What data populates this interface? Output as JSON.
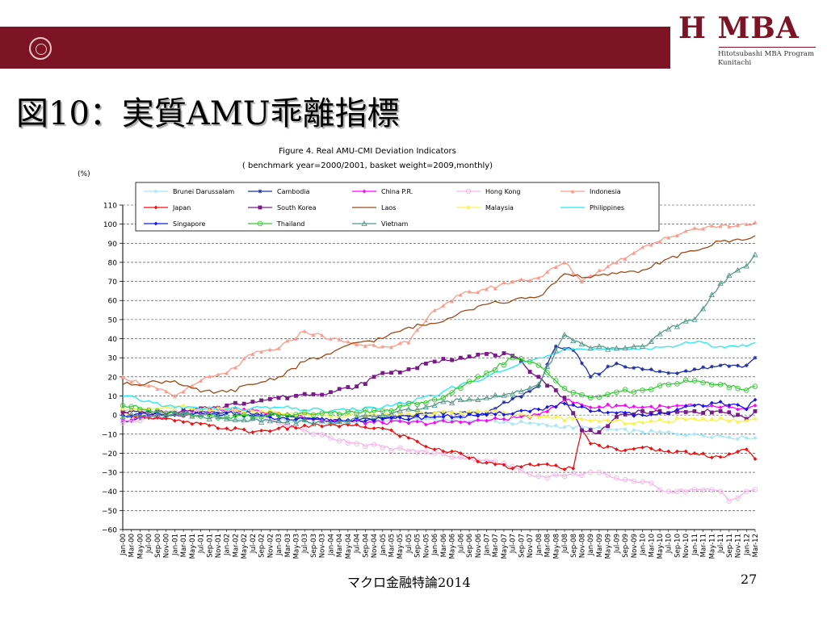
{
  "slide": {
    "title": "図10：実質AMU乖離指標",
    "footer": "マクロ金融特論2014",
    "page_number": "27"
  },
  "logo": {
    "text": "H MBA",
    "line1": "Hitotsubashi MBA Program",
    "line2": "Kunitachi"
  },
  "colors": {
    "banner": "#7d1426",
    "Brunei Darussalam": "#a9e6f6",
    "Cambodia": "#1f2f9f",
    "China P.R.": "#ff00ff",
    "Hong Kong": "#f6b6e6",
    "Indonesia": "#ff9a8a",
    "Japan": "#ee1111",
    "South Korea": "#7a1a8a",
    "Laos": "#9a4a1a",
    "Malaysia": "#f6f24a",
    "Philippines": "#22eaf6",
    "Singapore": "#1616e6",
    "Thailand": "#33cc33",
    "Vietnam": "#559988"
  },
  "chart_data": {
    "type": "line",
    "title": "Figure 4. Real AMU-CMI Deviation Indicators",
    "subtitle": "( benchmark year=2000/2001, basket weight=2009,monthly)",
    "ylabel": "(%)",
    "xlabel": "",
    "ylim": [
      -60,
      110
    ],
    "yticks": [
      110,
      100,
      90,
      80,
      70,
      60,
      50,
      40,
      30,
      20,
      10,
      0,
      -10,
      -20,
      -30,
      -40,
      -50,
      -60
    ],
    "grid": "horizontal dashed",
    "legend_position": "top, inside",
    "x_start": "Jan-00",
    "x_end": "Mar-12",
    "x_tick_labels": [
      "Jan-00",
      "Mar-00",
      "May-00",
      "Jul-00",
      "Sep-00",
      "Nov-00",
      "Jan-01",
      "Mar-01",
      "May-01",
      "Jul-01",
      "Sep-01",
      "Nov-01",
      "Jan-02",
      "Mar-02",
      "May-02",
      "Jul-02",
      "Sep-02",
      "Nov-02",
      "Jan-03",
      "Mar-03",
      "May-03",
      "Jul-03",
      "Sep-03",
      "Nov-03",
      "Jan-04",
      "Mar-04",
      "May-04",
      "Jul-04",
      "Sep-04",
      "Nov-04",
      "Jan-05",
      "Mar-05",
      "May-05",
      "Jul-05",
      "Sep-05",
      "Nov-05",
      "Jan-06",
      "Mar-06",
      "May-06",
      "Jul-06",
      "Sep-06",
      "Nov-06",
      "Jan-07",
      "Mar-07",
      "May-07",
      "Jul-07",
      "Sep-07",
      "Nov-07",
      "Jan-08",
      "Mar-08",
      "May-08",
      "Jul-08",
      "Sep-08",
      "Nov-08",
      "Jan-09",
      "Mar-09",
      "May-09",
      "Jul-09",
      "Sep-09",
      "Nov-09",
      "Jan-10",
      "Mar-10",
      "May-10",
      "Jul-10",
      "Sep-10",
      "Nov-10",
      "Jan-11",
      "Mar-11",
      "May-11",
      "Jul-11",
      "Sep-11",
      "Nov-11",
      "Jan-12",
      "Mar-12"
    ],
    "series": [
      {
        "name": "Brunei Darussalam",
        "marker": "star",
        "dates": [
          "Jan-00",
          "Jan-01",
          "Jan-02",
          "Jan-03",
          "Jan-04",
          "Jan-05",
          "Jan-06",
          "Jan-07",
          "Jan-08",
          "Jan-09",
          "Jan-10",
          "Jan-11",
          "Jan-12",
          "Mar-12"
        ],
        "values": [
          2,
          1,
          -1,
          -3,
          -4,
          -3,
          -2,
          -3,
          -5,
          -7,
          -9,
          -10,
          -12,
          -12
        ]
      },
      {
        "name": "Cambodia",
        "marker": "asterisk",
        "dates": [
          "Jan-00",
          "Jan-01",
          "Jan-02",
          "Jan-03",
          "Jan-04",
          "Jan-05",
          "Jan-06",
          "Jan-07",
          "Jan-08",
          "May-08",
          "Sep-08",
          "Jan-09",
          "Jul-09",
          "Jan-10",
          "Jul-10",
          "Jan-11",
          "Jul-11",
          "Jan-12",
          "Mar-12"
        ],
        "values": [
          -3,
          1,
          2,
          0,
          -3,
          -2,
          1,
          1,
          15,
          36,
          34,
          20,
          27,
          24,
          22,
          24,
          26,
          26,
          30
        ]
      },
      {
        "name": "China P.R.",
        "marker": "diamond",
        "dates": [
          "Jan-00",
          "Jan-01",
          "Jan-02",
          "Jan-03",
          "Jan-04",
          "Jan-05",
          "Jan-06",
          "Jan-07",
          "Jan-08",
          "Jul-08",
          "Jan-09",
          "Jul-09",
          "Jan-10",
          "Jul-10",
          "Jan-11",
          "Jul-11",
          "Jan-12",
          "Mar-12"
        ],
        "values": [
          -3,
          0,
          3,
          1,
          -3,
          -4,
          -4,
          -3,
          0,
          8,
          4,
          5,
          4,
          4,
          5,
          4,
          3,
          5
        ]
      },
      {
        "name": "Hong Kong",
        "marker": "circle-open",
        "dates": [
          "Jan-00",
          "Jan-01",
          "Jan-02",
          "Jan-03",
          "Jan-04",
          "Jan-05",
          "Jan-06",
          "Jan-07",
          "Jul-07",
          "Jan-08",
          "Jul-08",
          "Jan-09",
          "Jul-09",
          "Jan-10",
          "Jul-10",
          "Jan-11",
          "Jul-11",
          "Sep-11",
          "Jan-12",
          "Mar-12"
        ],
        "values": [
          -4,
          2,
          3,
          -4,
          -12,
          -17,
          -20,
          -24,
          -27,
          -32,
          -32,
          -30,
          -33,
          -35,
          -40,
          -39,
          -40,
          -45,
          -40,
          -39
        ]
      },
      {
        "name": "Indonesia",
        "marker": "triangle",
        "dates": [
          "Jan-00",
          "Jan-01",
          "Jul-01",
          "Jan-02",
          "Jul-02",
          "Jan-03",
          "Jul-03",
          "Jan-04",
          "Jul-04",
          "Jan-05",
          "Jul-05",
          "Jan-06",
          "Jul-06",
          "Jan-07",
          "Jul-07",
          "Jan-08",
          "Jul-08",
          "Nov-08",
          "Jan-09",
          "Jul-09",
          "Jan-10",
          "Jul-10",
          "Jan-11",
          "Jul-11",
          "Jan-12",
          "Mar-12"
        ],
        "values": [
          20,
          10,
          18,
          22,
          32,
          35,
          44,
          40,
          37,
          36,
          38,
          55,
          63,
          66,
          70,
          72,
          80,
          70,
          73,
          80,
          88,
          93,
          98,
          99,
          100,
          101
        ]
      },
      {
        "name": "Japan",
        "marker": "diamond",
        "dates": [
          "Jan-00",
          "Jan-01",
          "Jan-02",
          "Jul-02",
          "Jan-03",
          "Jan-04",
          "Jan-05",
          "Jul-05",
          "Jan-06",
          "Jul-06",
          "Jan-07",
          "Jul-07",
          "Jan-08",
          "Sep-08",
          "Nov-08",
          "Jan-09",
          "Jul-09",
          "Jan-10",
          "Jul-10",
          "Jan-11",
          "Jul-11",
          "Jan-12",
          "Mar-12"
        ],
        "values": [
          1,
          -3,
          -7,
          -9,
          -7,
          -5,
          -7,
          -12,
          -18,
          -20,
          -25,
          -28,
          -26,
          -28,
          -8,
          -15,
          -18,
          -17,
          -19,
          -20,
          -22,
          -18,
          -23
        ]
      },
      {
        "name": "South Korea",
        "marker": "square",
        "dates": [
          "Jan-00",
          "Jan-01",
          "Jan-02",
          "Jul-02",
          "Jan-03",
          "Jul-03",
          "Jan-04",
          "Jul-04",
          "Jan-05",
          "Jul-05",
          "Jan-06",
          "Jul-06",
          "Jan-07",
          "Jul-07",
          "Jan-08",
          "Jul-08",
          "Nov-08",
          "Mar-09",
          "Jul-09",
          "Jan-10",
          "Jul-10",
          "Jan-11",
          "Jul-11",
          "Jan-12",
          "Mar-12"
        ],
        "values": [
          2,
          1,
          5,
          7,
          9,
          11,
          12,
          15,
          22,
          24,
          28,
          30,
          32,
          31,
          20,
          9,
          -8,
          -9,
          -1,
          2,
          1,
          2,
          2,
          -2,
          2
        ]
      },
      {
        "name": "Laos",
        "marker": "line",
        "dates": [
          "Jan-00",
          "Jan-01",
          "Jul-01",
          "Jan-02",
          "Jul-02",
          "Jan-03",
          "Jul-03",
          "Jan-04",
          "Jul-04",
          "Jan-05",
          "Jul-05",
          "Jan-06",
          "Jul-06",
          "Jan-07",
          "Jul-07",
          "Jan-08",
          "Jul-08",
          "Jan-09",
          "Jul-09",
          "Jan-10",
          "Jul-10",
          "Jan-11",
          "Jul-11",
          "Jan-12",
          "Mar-12"
        ],
        "values": [
          16,
          18,
          12,
          12,
          16,
          20,
          28,
          32,
          38,
          40,
          46,
          48,
          54,
          58,
          60,
          62,
          74,
          72,
          74,
          76,
          82,
          86,
          91,
          92,
          94
        ]
      },
      {
        "name": "Malaysia",
        "marker": "star",
        "dates": [
          "Jan-00",
          "Jan-01",
          "Jan-02",
          "Jan-03",
          "Jan-04",
          "Jan-05",
          "Jan-06",
          "Jan-07",
          "Jan-08",
          "Jan-09",
          "Jan-10",
          "Jan-11",
          "Jan-12",
          "Mar-12"
        ],
        "values": [
          3,
          4,
          3,
          1,
          -1,
          0,
          1,
          2,
          -1,
          -3,
          -4,
          -2,
          -3,
          -2
        ]
      },
      {
        "name": "Philippines",
        "marker": "line",
        "dates": [
          "Jan-00",
          "Jan-01",
          "Jan-02",
          "Jan-03",
          "Jan-04",
          "Jan-05",
          "Jan-06",
          "Jul-06",
          "Jan-07",
          "Jul-07",
          "Jan-08",
          "Jul-08",
          "Jan-09",
          "Jul-09",
          "Jan-10",
          "Jul-10",
          "Jan-11",
          "Jul-11",
          "Jan-12",
          "Mar-12"
        ],
        "values": [
          10,
          4,
          3,
          4,
          2,
          4,
          10,
          16,
          20,
          25,
          30,
          35,
          34,
          34,
          35,
          36,
          38,
          36,
          36,
          38
        ]
      },
      {
        "name": "Singapore",
        "marker": "diamond",
        "dates": [
          "Jan-00",
          "Jan-01",
          "Jan-02",
          "Jan-03",
          "Jan-04",
          "Jan-05",
          "Jan-06",
          "Jan-07",
          "Jan-08",
          "Jul-08",
          "Jan-09",
          "Jul-09",
          "Jan-10",
          "Jul-10",
          "Jan-11",
          "Jul-11",
          "Jan-12",
          "Mar-12"
        ],
        "values": [
          0,
          0,
          1,
          -2,
          -3,
          -2,
          -1,
          0,
          3,
          6,
          2,
          1,
          0,
          1,
          5,
          7,
          3,
          8
        ]
      },
      {
        "name": "Thailand",
        "marker": "circle-open",
        "dates": [
          "Jan-00",
          "Jan-01",
          "Jan-02",
          "Jan-03",
          "Jan-04",
          "Jan-05",
          "Jan-06",
          "Jul-06",
          "Jan-07",
          "Jul-07",
          "Jan-08",
          "Jul-08",
          "Jan-09",
          "Jul-09",
          "Jan-10",
          "Jul-10",
          "Jan-11",
          "Jul-11",
          "Jan-12",
          "Mar-12"
        ],
        "values": [
          5,
          1,
          -1,
          0,
          1,
          2,
          8,
          14,
          22,
          30,
          26,
          14,
          9,
          12,
          13,
          16,
          18,
          16,
          13,
          15
        ]
      },
      {
        "name": "Vietnam",
        "marker": "triangle-open",
        "dates": [
          "Jan-00",
          "Jan-01",
          "Jan-02",
          "Jan-03",
          "Jan-04",
          "Jan-05",
          "Jan-06",
          "Jul-06",
          "Jan-07",
          "Jul-07",
          "Jan-08",
          "Jul-08",
          "Jan-09",
          "Jul-09",
          "Jan-10",
          "Jul-10",
          "Jan-11",
          "Jul-11",
          "Jan-12",
          "Mar-12"
        ],
        "values": [
          -1,
          1,
          -2,
          -3,
          -4,
          0,
          5,
          8,
          9,
          11,
          16,
          42,
          35,
          35,
          36,
          45,
          50,
          69,
          78,
          84
        ]
      }
    ]
  }
}
